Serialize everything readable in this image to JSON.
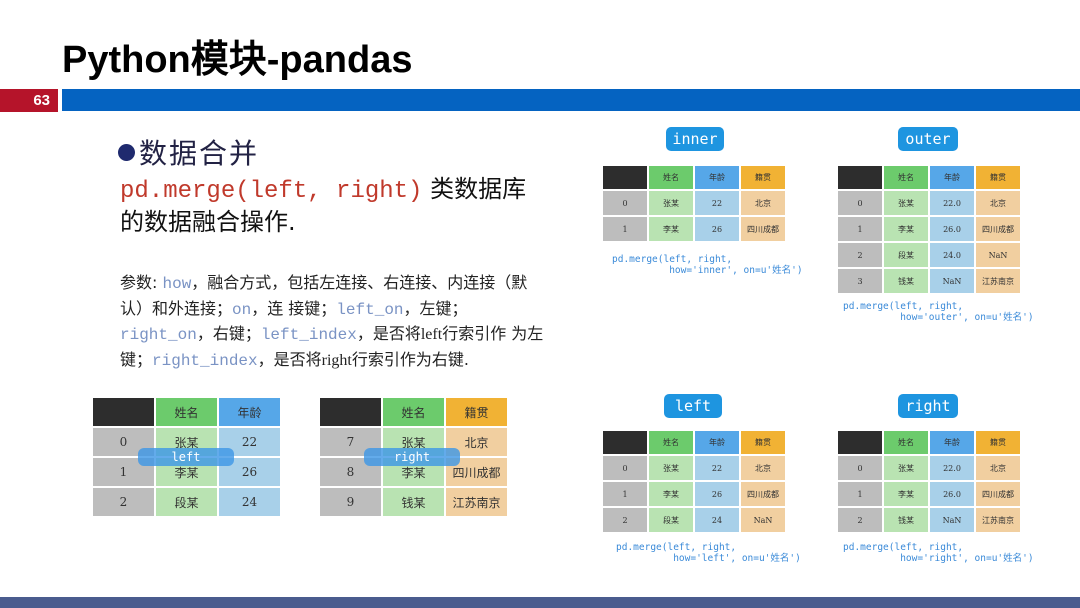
{
  "slide": {
    "title": "Python模块-pandas",
    "page_number": "63",
    "heading": "数据合并",
    "merge_code": "pd.merge(left, right)",
    "merge_desc": " 类数据库的数据融合操作.",
    "params": [
      {
        "t": "参数: "
      },
      {
        "k": "how"
      },
      {
        "t": "，融合方式，包括左连接、右连接、内连接（默认）和外连接；"
      },
      {
        "k": "on"
      },
      {
        "t": "，连 接键；"
      },
      {
        "k": "left_on"
      },
      {
        "t": "，左键；"
      },
      {
        "k": "right_on"
      },
      {
        "t": "，右键；"
      },
      {
        "k": "left_index"
      },
      {
        "t": "，是否将"
      },
      {
        "s": "left"
      },
      {
        "t": "行索引作 为左键；"
      },
      {
        "k": "right_index"
      },
      {
        "t": "，是否将"
      },
      {
        "s": "right"
      },
      {
        "t": "行索引作为右键."
      }
    ]
  },
  "colors": {
    "accent_blue": "#0563c1",
    "page_red": "#b5142a",
    "index": {
      "head": "#2d2d2d",
      "cell": "#bdbdbd"
    },
    "name": {
      "head": "#6ccb6c",
      "cell": "#b9e3b2"
    },
    "age": {
      "head": "#56a7e8",
      "cell": "#a8d0e9"
    },
    "place": {
      "head": "#f1b234",
      "cell": "#f1cfa0"
    }
  },
  "tables": [
    {
      "id": "source-left",
      "overlay": "left",
      "columns": [
        {
          "kind": "index",
          "label": ""
        },
        {
          "kind": "name",
          "label": "姓名"
        },
        {
          "kind": "age",
          "label": "年龄"
        }
      ],
      "rows": [
        [
          "0",
          "张某",
          "22"
        ],
        [
          "1",
          "李某",
          "26"
        ],
        [
          "2",
          "段某",
          "24"
        ]
      ]
    },
    {
      "id": "source-right",
      "overlay": "right",
      "columns": [
        {
          "kind": "index",
          "label": ""
        },
        {
          "kind": "name",
          "label": "姓名"
        },
        {
          "kind": "place",
          "label": "籍贯"
        }
      ],
      "rows": [
        [
          "7",
          "张某",
          "北京"
        ],
        [
          "8",
          "李某",
          "四川成都"
        ],
        [
          "9",
          "钱某",
          "江苏南京"
        ]
      ]
    },
    {
      "id": "inner",
      "pill": "inner",
      "code": "pd.merge(left, right,\n          how='inner', on=u'姓名')",
      "columns": [
        {
          "kind": "index",
          "label": ""
        },
        {
          "kind": "name",
          "label": "姓名"
        },
        {
          "kind": "age",
          "label": "年龄"
        },
        {
          "kind": "place",
          "label": "籍贯"
        }
      ],
      "rows": [
        [
          "0",
          "张某",
          "22",
          "北京"
        ],
        [
          "1",
          "李某",
          "26",
          "四川成都"
        ]
      ]
    },
    {
      "id": "outer",
      "pill": "outer",
      "code": "pd.merge(left, right,\n          how='outer', on=u'姓名')",
      "columns": [
        {
          "kind": "index",
          "label": ""
        },
        {
          "kind": "name",
          "label": "姓名"
        },
        {
          "kind": "age",
          "label": "年龄"
        },
        {
          "kind": "place",
          "label": "籍贯"
        }
      ],
      "rows": [
        [
          "0",
          "张某",
          "22.0",
          "北京"
        ],
        [
          "1",
          "李某",
          "26.0",
          "四川成都"
        ],
        [
          "2",
          "段某",
          "24.0",
          "NaN"
        ],
        [
          "3",
          "钱某",
          "NaN",
          "江苏南京"
        ]
      ]
    },
    {
      "id": "left",
      "pill": "left",
      "code": "pd.merge(left, right,\n          how='left', on=u'姓名')",
      "columns": [
        {
          "kind": "index",
          "label": ""
        },
        {
          "kind": "name",
          "label": "姓名"
        },
        {
          "kind": "age",
          "label": "年龄"
        },
        {
          "kind": "place",
          "label": "籍贯"
        }
      ],
      "rows": [
        [
          "0",
          "张某",
          "22",
          "北京"
        ],
        [
          "1",
          "李某",
          "26",
          "四川成都"
        ],
        [
          "2",
          "段某",
          "24",
          "NaN"
        ]
      ]
    },
    {
      "id": "right",
      "pill": "right",
      "code": "pd.merge(left, right,\n          how='right', on=u'姓名')",
      "columns": [
        {
          "kind": "index",
          "label": ""
        },
        {
          "kind": "name",
          "label": "姓名"
        },
        {
          "kind": "age",
          "label": "年龄"
        },
        {
          "kind": "place",
          "label": "籍贯"
        }
      ],
      "rows": [
        [
          "0",
          "张某",
          "22.0",
          "北京"
        ],
        [
          "1",
          "李某",
          "26.0",
          "四川成都"
        ],
        [
          "2",
          "钱某",
          "NaN",
          "江苏南京"
        ]
      ]
    }
  ]
}
